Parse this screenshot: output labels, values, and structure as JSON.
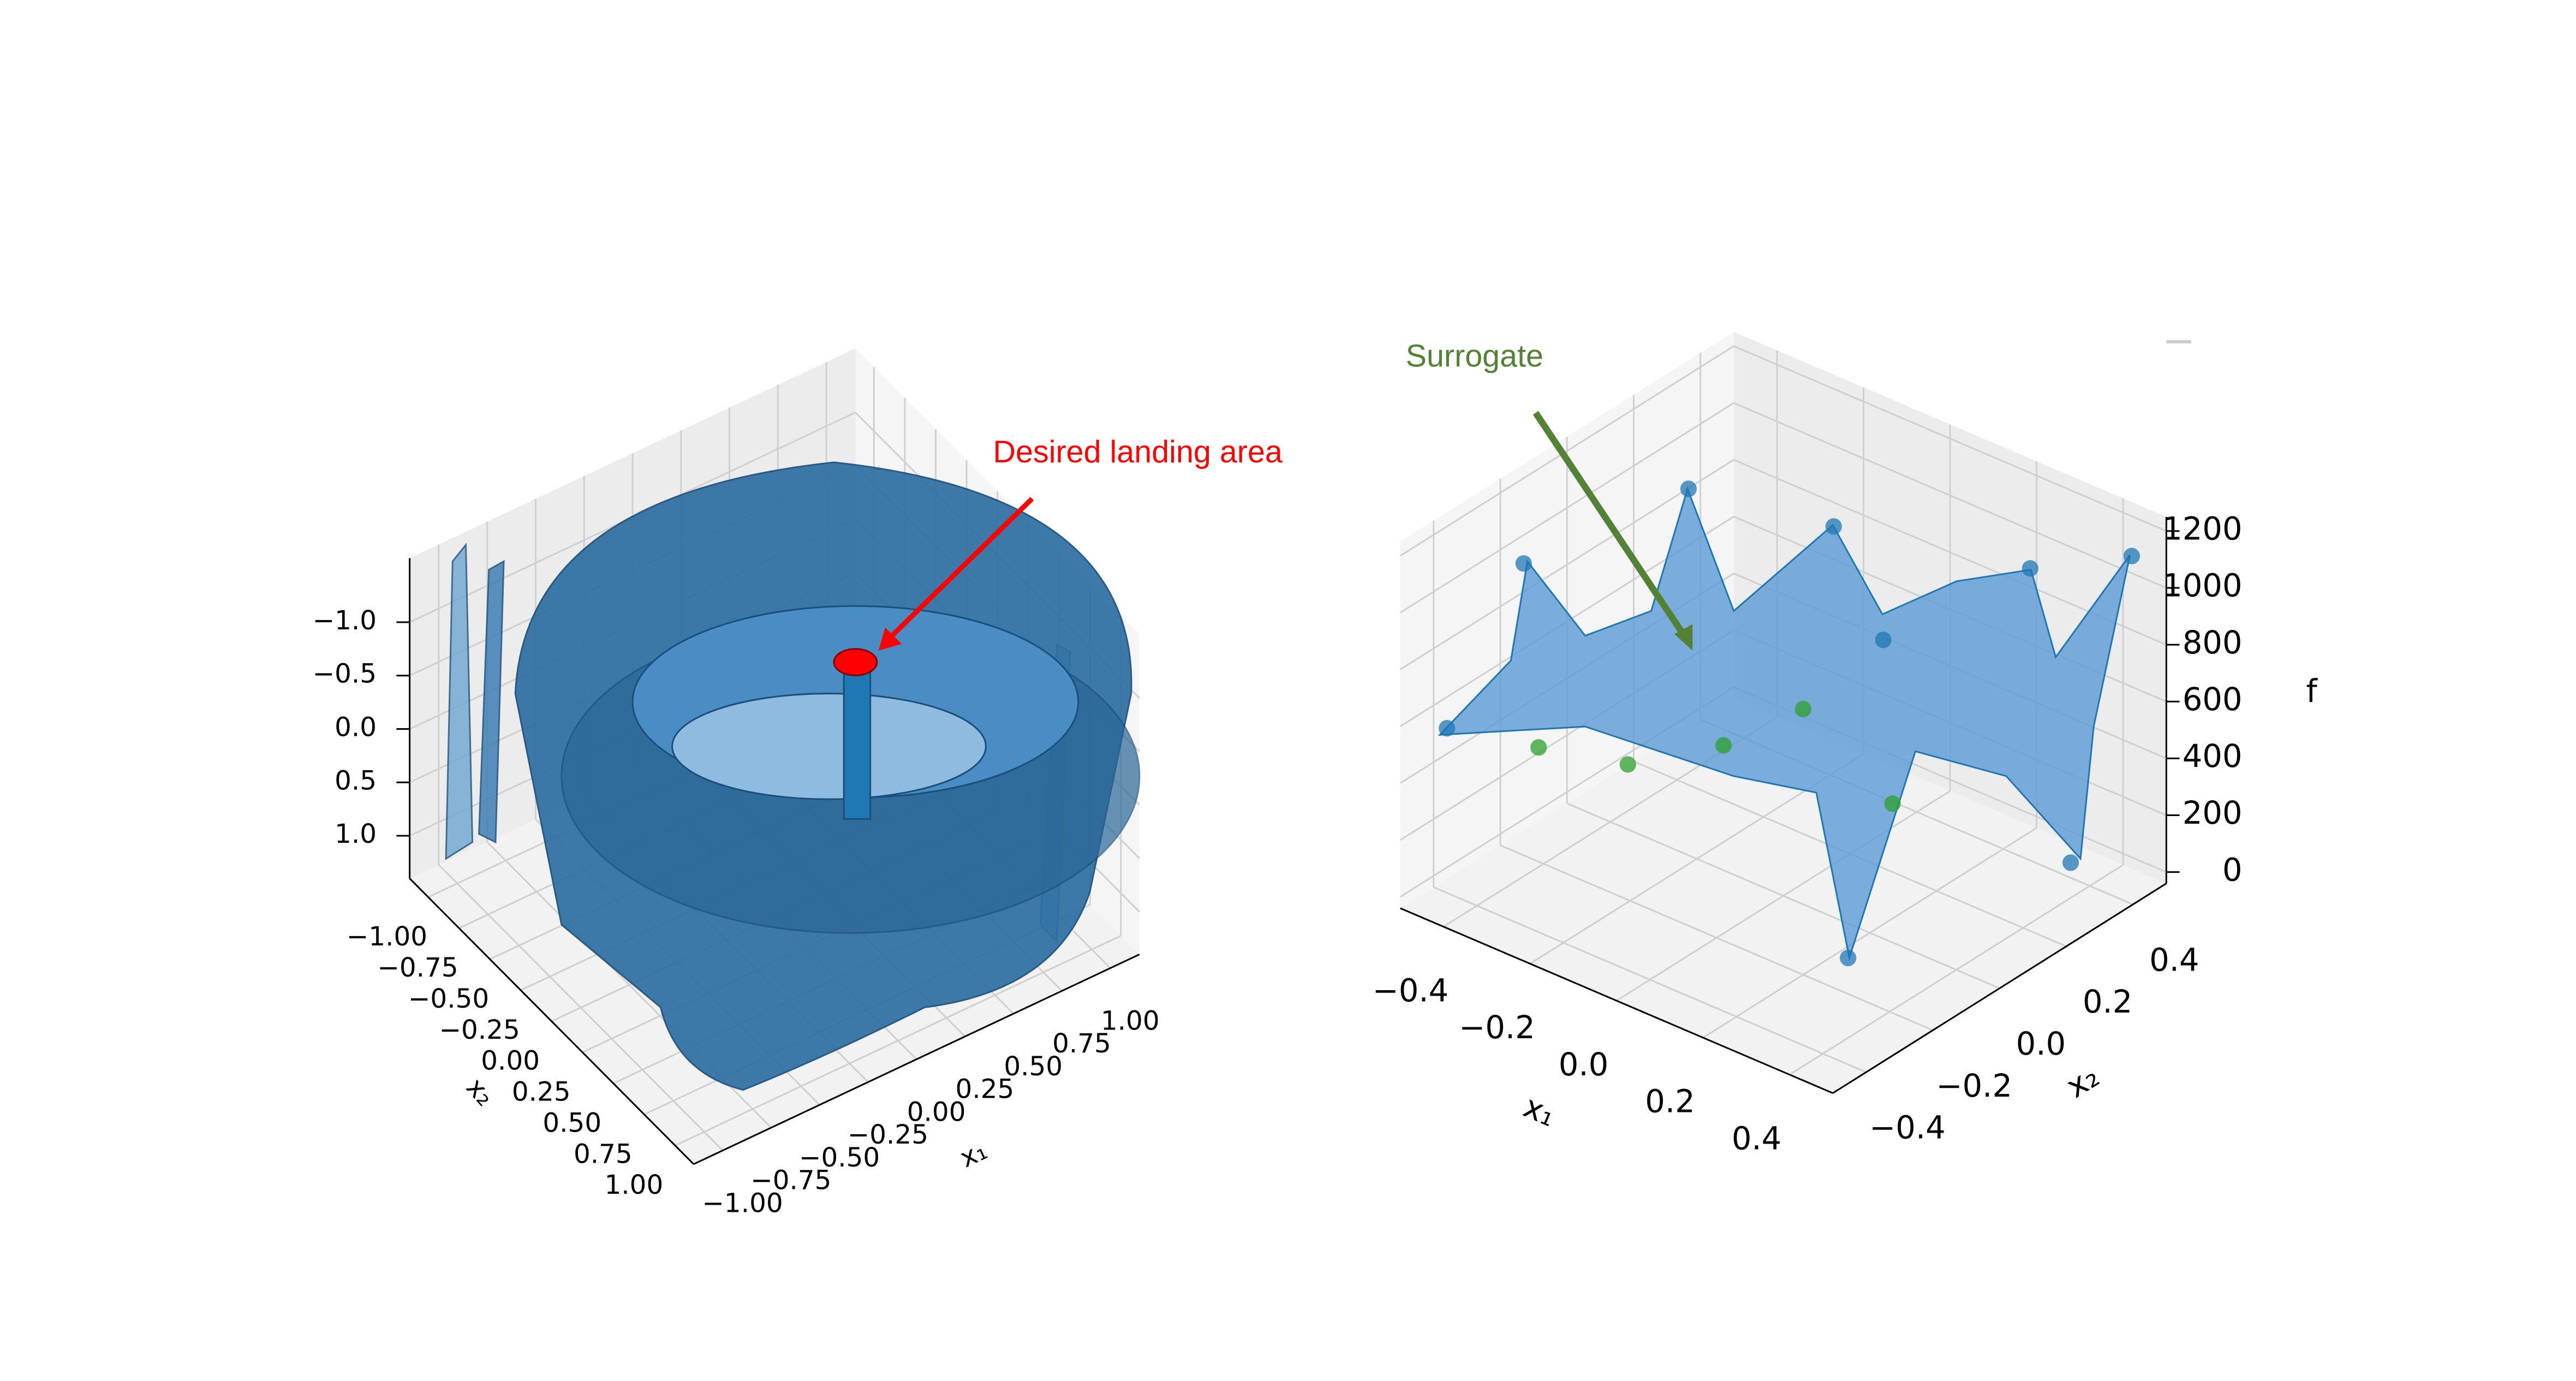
{
  "chart_data": [
    {
      "type": "surface3d",
      "annotation": "Desired landing area",
      "color": "#1f77b4",
      "grid": true,
      "xlabel": "x₁",
      "ylabel": "x₂",
      "xlim": [
        -1.15,
        1.15
      ],
      "ylim": [
        -1.15,
        1.15
      ],
      "zlim": [
        1.4,
        -1.6
      ],
      "xticks": [
        {
          "value": -1,
          "label": "−1.00"
        },
        {
          "value": -0.75,
          "label": "−0.75"
        },
        {
          "value": -0.5,
          "label": "−0.50"
        },
        {
          "value": -0.25,
          "label": "−0.25"
        },
        {
          "value": 0,
          "label": "0.00"
        },
        0.25,
        {
          "value": 0.5,
          "label": "0.50"
        },
        0.75,
        {
          "value": 1,
          "label": "1.00"
        }
      ],
      "yticks": [
        {
          "value": -1,
          "label": "−1.00"
        },
        {
          "value": -0.75,
          "label": "−0.75"
        },
        {
          "value": -0.5,
          "label": "−0.50"
        },
        {
          "value": -0.25,
          "label": "−0.25"
        },
        {
          "value": 0,
          "label": "0.00"
        },
        0.25,
        {
          "value": 0.5,
          "label": "0.50"
        },
        0.75,
        {
          "value": 1,
          "label": "1.00"
        }
      ],
      "zticks": [
        {
          "value": -1,
          "label": "−1.0"
        },
        {
          "value": -0.5,
          "label": "−0.5"
        },
        {
          "value": 0,
          "label": "0.0"
        },
        0.5,
        {
          "value": 1,
          "label": "1.0"
        }
      ]
    },
    {
      "type": "surface3d",
      "annotation": "Surrogate",
      "color": "#1f77b4",
      "grid": true,
      "xlabel": "x₁",
      "ylabel": "x₂",
      "zlabel": "f",
      "xlim": [
        -0.5,
        0.5
      ],
      "ylim": [
        -0.5,
        0.5
      ],
      "zlim": [
        -40,
        1250
      ],
      "xticks": [
        {
          "value": -0.4,
          "label": "−0.4"
        },
        {
          "value": -0.2,
          "label": "−0.2"
        },
        {
          "value": 0,
          "label": "0.0"
        },
        0.2,
        0.4
      ],
      "yticks": [
        {
          "value": -0.4,
          "label": "−0.4"
        },
        {
          "value": -0.2,
          "label": "−0.2"
        },
        {
          "value": 0,
          "label": "0.0"
        },
        0.2,
        0.4
      ],
      "zticks": [
        0,
        200,
        400,
        600,
        800,
        1000,
        1200
      ],
      "points": [
        {
          "color": "#1f77b4",
          "x1": [
            -0.5,
            0.42,
            0.25,
            0.41,
            -0.25,
            -0.5,
            0.27,
            -0.03,
            0.1
          ],
          "x2": [
            -0.36,
            0.5,
            -0.13,
            0.33,
            0.04,
            -0.13,
            0.39,
            0.19,
            0.17
          ],
          "f": [
            490,
            1060,
            0,
            100,
            1200,
            900,
            1000,
            1100,
            800
          ]
        },
        {
          "color": "#2ca02c",
          "x1": [
            -0.45,
            -0.29,
            -0.2,
            0.16,
            -0.17
          ],
          "x2": [
            -0.15,
            -0.09,
            0.08,
            0.12,
            0.28
          ],
          "f": [
            300,
            300,
            300,
            300,
            300
          ]
        }
      ]
    }
  ]
}
